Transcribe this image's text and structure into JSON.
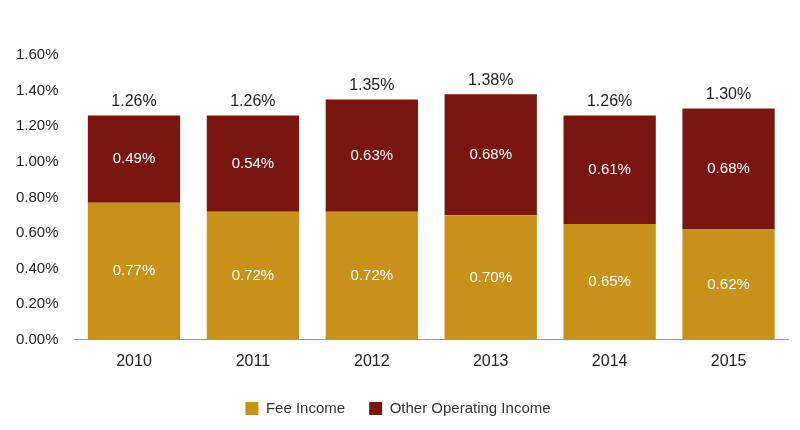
{
  "chart_data": {
    "type": "bar",
    "stacked": true,
    "categories": [
      "2010",
      "2011",
      "2012",
      "2013",
      "2014",
      "2015"
    ],
    "series": [
      {
        "name": "Fee Income",
        "color": "#C8921A",
        "values": [
          0.77,
          0.72,
          0.72,
          0.7,
          0.65,
          0.62
        ],
        "value_labels": [
          "0.77%",
          "0.72%",
          "0.72%",
          "0.70%",
          "0.65%",
          "0.62%"
        ]
      },
      {
        "name": "Other Operating Income",
        "color": "#7A1610",
        "values": [
          0.49,
          0.54,
          0.63,
          0.68,
          0.61,
          0.68
        ],
        "value_labels": [
          "0.49%",
          "0.54%",
          "0.63%",
          "0.68%",
          "0.61%",
          "0.68%"
        ]
      }
    ],
    "totals": [
      1.26,
      1.26,
      1.35,
      1.38,
      1.26,
      1.3
    ],
    "total_labels": [
      "1.26%",
      "1.26%",
      "1.35%",
      "1.38%",
      "1.26%",
      "1.30%"
    ],
    "ylim": [
      0,
      1.6
    ],
    "yticks": [
      {
        "value": 0,
        "label": "0.00%"
      },
      {
        "value": 0.2,
        "label": "0.20%"
      },
      {
        "value": 0.4,
        "label": "0.40%"
      },
      {
        "value": 0.6,
        "label": "0.60%"
      },
      {
        "value": 0.8,
        "label": "0.80%"
      },
      {
        "value": 1.0,
        "label": "1.00%"
      },
      {
        "value": 1.2,
        "label": "1.20%"
      },
      {
        "value": 1.4,
        "label": "1.40%"
      },
      {
        "value": 1.6,
        "label": "1.60%"
      }
    ],
    "grid": false,
    "legend": "bottom",
    "data_labels": true
  }
}
